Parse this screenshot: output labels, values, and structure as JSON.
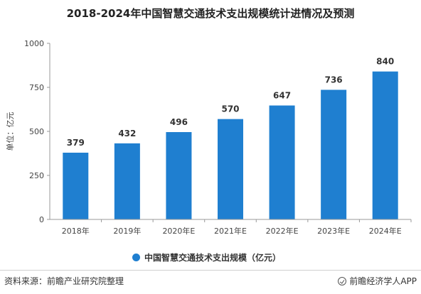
{
  "title": "2018-2024年中国智慧交通技术支出规模统计进情况及预测",
  "footer": {
    "source": "资料来源：前瞻产业研究院整理",
    "brand": "前瞻经济学人APP"
  },
  "colors": {
    "bar": "#1f7fd0",
    "axis": "#999999",
    "text": "#333333"
  },
  "chart_data": {
    "type": "bar",
    "categories": [
      "2018年",
      "2019年",
      "2020年E",
      "2021年E",
      "2022年E",
      "2023年E",
      "2024年E"
    ],
    "series": [
      {
        "name": "中国智慧交通技术支出规模（亿元）",
        "values": [
          379,
          432,
          496,
          570,
          647,
          736,
          840
        ]
      }
    ],
    "ylabel": "单位：亿元",
    "ylim": [
      0,
      1000
    ],
    "yticks": [
      0,
      250,
      500,
      750,
      1000
    ],
    "grid": false,
    "legend": "bottom-center"
  }
}
